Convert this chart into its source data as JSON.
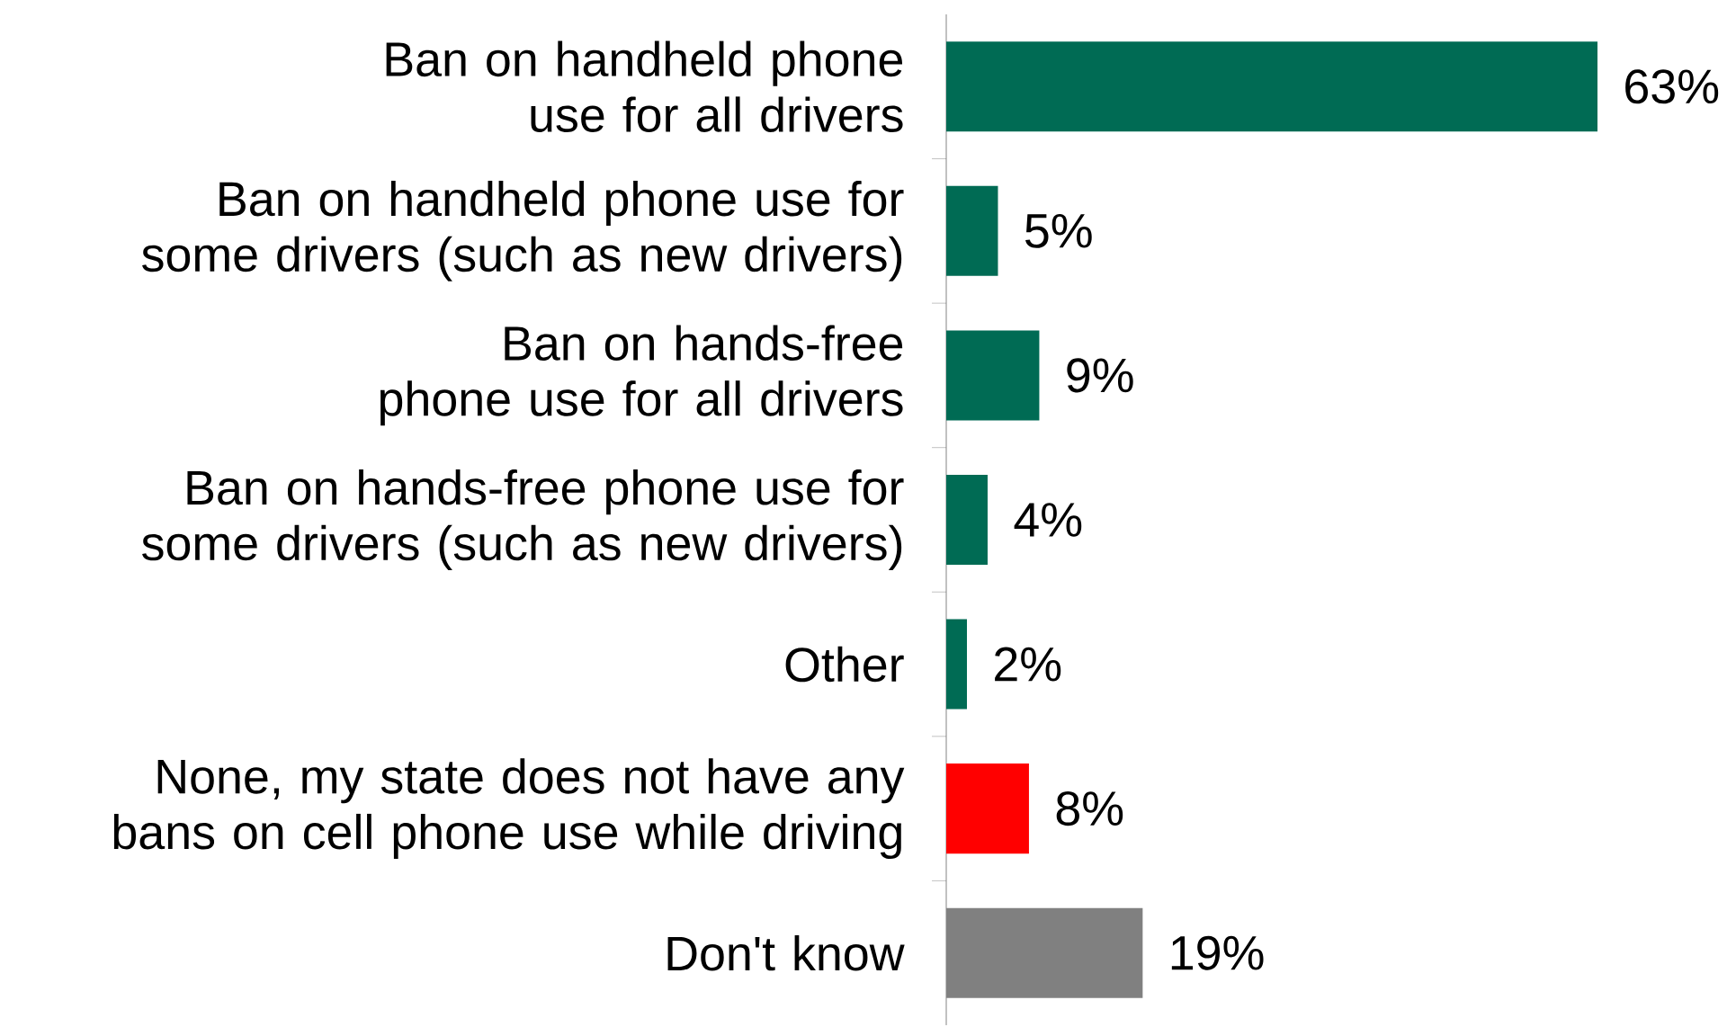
{
  "chart_data": {
    "type": "bar",
    "orientation": "horizontal",
    "categories": [
      "Ban on handheld phone use for all drivers",
      "Ban on handheld phone use for some drivers (such as new drivers)",
      "Ban on hands-free phone use for all drivers",
      "Ban on hands-free phone use for some drivers (such as new drivers)",
      "Other",
      "None, my state does not have any bans on cell phone use while driving",
      "Don't know"
    ],
    "values": [
      63,
      5,
      9,
      4,
      2,
      8,
      19
    ],
    "colors": [
      "#006b54",
      "#006b54",
      "#006b54",
      "#006b54",
      "#006b54",
      "#ff0000",
      "#808080"
    ],
    "value_labels": [
      "63%",
      "5%",
      "9%",
      "4%",
      "2%",
      "8%",
      "19%"
    ],
    "tick_labels": "y"
  }
}
